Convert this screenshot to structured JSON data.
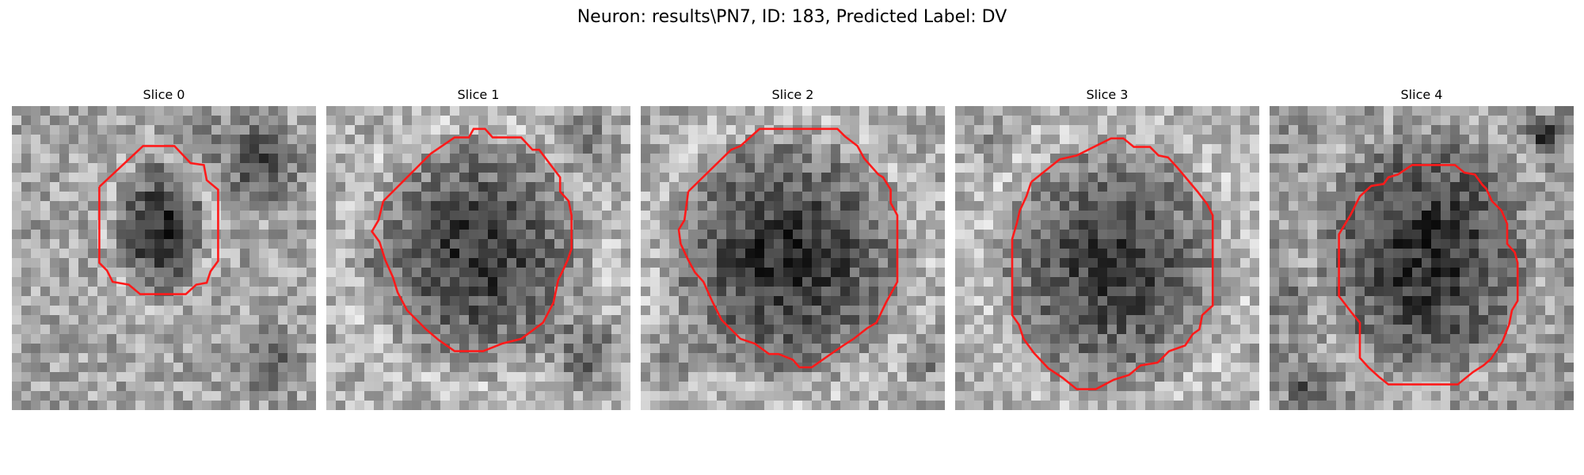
{
  "figure": {
    "title": "Neuron: results\\PN7, ID: 183, Predicted Label: DV"
  },
  "panels": [
    {
      "title": "Slice 0"
    },
    {
      "title": "Slice 1"
    },
    {
      "title": "Slice 2"
    },
    {
      "title": "Slice 3"
    },
    {
      "title": "Slice 4"
    }
  ],
  "colors": {
    "outline": "#ff1a1a",
    "background": "#ffffff"
  }
}
